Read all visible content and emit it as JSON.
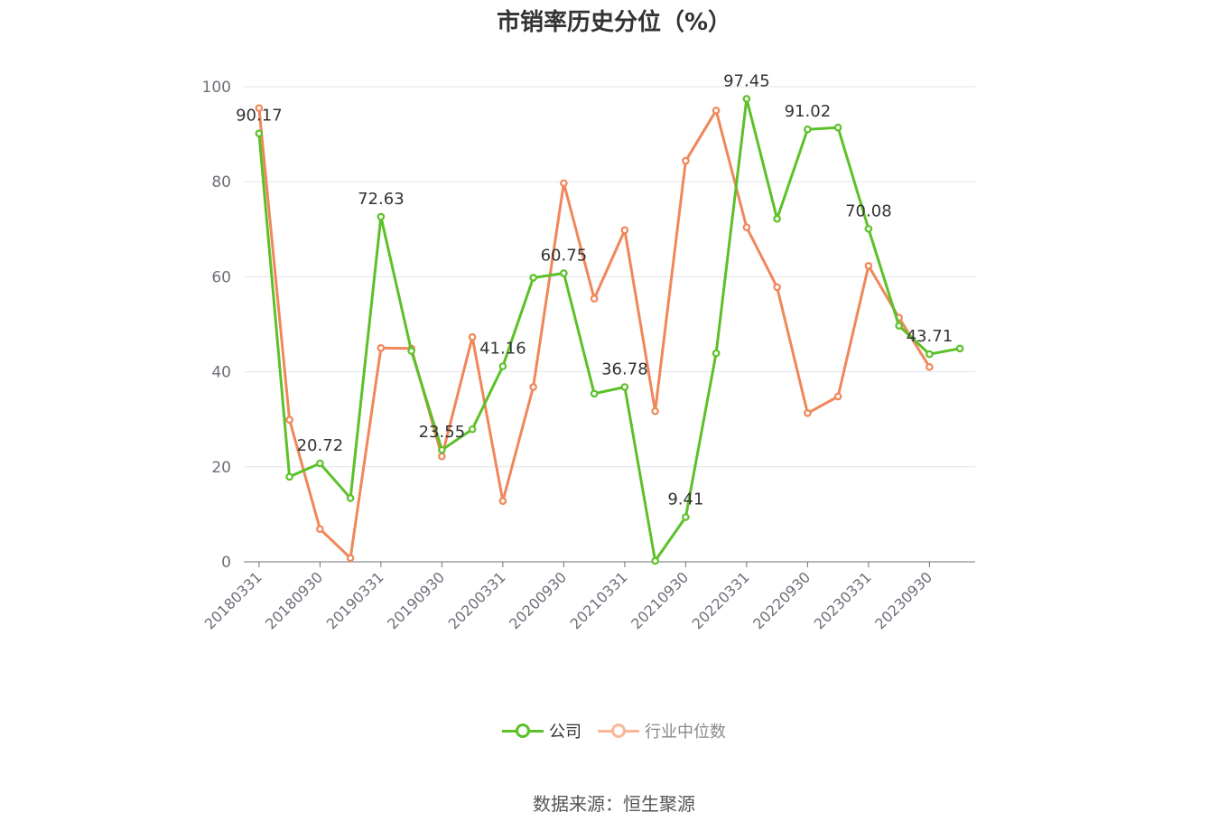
{
  "chart_data": {
    "type": "line",
    "title": "市销率历史分位（%）",
    "x": [
      "20180331",
      "20180630",
      "20180930",
      "20181231",
      "20190331",
      "20190630",
      "20190930",
      "20191231",
      "20200331",
      "20200630",
      "20200930",
      "20201231",
      "20210331",
      "20210630",
      "20210930",
      "20211231",
      "20220331",
      "20220630",
      "20220930",
      "20221231",
      "20230331",
      "20230630",
      "20230930",
      "20231231"
    ],
    "x_tick_labels": [
      "20180331",
      "20180930",
      "20190331",
      "20190930",
      "20200331",
      "20200930",
      "20210331",
      "20210930",
      "20220331",
      "20220930",
      "20230331",
      "20230930"
    ],
    "y_ticks": [
      "0",
      "20",
      "40",
      "60",
      "80",
      "100"
    ],
    "ylim": [
      0,
      100
    ],
    "grid": true,
    "legend_position": "bottom",
    "series": [
      {
        "name": "公司",
        "color": "#5cc128",
        "values": [
          90.17,
          17.9,
          20.72,
          13.4,
          72.63,
          44.4,
          23.55,
          27.9,
          41.16,
          59.8,
          60.75,
          35.4,
          36.78,
          0.2,
          9.41,
          43.9,
          97.45,
          72.2,
          91.02,
          91.4,
          70.08,
          49.7,
          43.71,
          44.9
        ],
        "point_labels": {
          "0": "90.17",
          "2": "20.72",
          "4": "72.63",
          "6": "23.55",
          "8": "41.16",
          "10": "60.75",
          "12": "36.78",
          "14": "9.41",
          "16": "97.45",
          "18": "91.02",
          "20": "70.08",
          "22": "43.71"
        }
      },
      {
        "name": "行业中位数",
        "color": "#f0875a",
        "values": [
          95.5,
          29.9,
          6.9,
          0.8,
          45.0,
          44.9,
          22.2,
          47.3,
          12.8,
          36.8,
          79.7,
          55.4,
          69.8,
          31.7,
          84.4,
          95.0,
          70.4,
          57.8,
          31.3,
          34.8,
          62.3,
          51.4,
          41.0,
          null
        ]
      }
    ]
  },
  "legend": {
    "items": [
      {
        "label": "公司",
        "color": "#5cc128",
        "active": true
      },
      {
        "label": "行业中位数",
        "color": "#f9b79a",
        "active": false
      }
    ]
  },
  "source_text": "数据来源：恒生聚源"
}
